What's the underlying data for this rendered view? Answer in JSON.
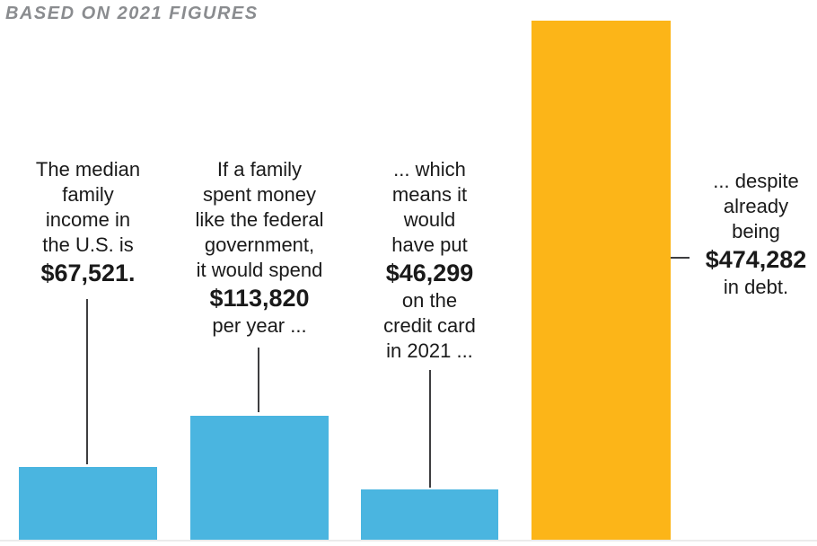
{
  "title": "BASED ON 2021 FIGURES",
  "colors": {
    "bar_blue": "#4ab5e0",
    "bar_orange": "#fcb518",
    "connector": "#3e3e40",
    "baseline": "#ebebeb",
    "text": "#1a1a1a",
    "title_gray": "#8a8c8f"
  },
  "chart_data": {
    "type": "bar",
    "title": "BASED ON 2021 FIGURES",
    "values": [
      67521,
      113820,
      46299,
      474282
    ],
    "unit": "USD",
    "bar_colors": [
      "#4ab5e0",
      "#4ab5e0",
      "#4ab5e0",
      "#fcb518"
    ],
    "ylim": [
      0,
      474282
    ],
    "grid": false,
    "legend": false,
    "annotations": [
      {
        "name": "median-family-income",
        "lines_before": [
          "The median",
          "family",
          "income in",
          "the U.S. is"
        ],
        "amount": "$67,521.",
        "lines_after": []
      },
      {
        "name": "family-spending-like-government",
        "lines_before": [
          "If a family",
          "spent money",
          "like the federal",
          "government,",
          "it would spend"
        ],
        "amount": "$113,820",
        "lines_after": [
          "per year ..."
        ]
      },
      {
        "name": "credit-card-2021",
        "lines_before": [
          "... which",
          "means it",
          "would",
          "have put"
        ],
        "amount": "$46,299",
        "lines_after": [
          "on the",
          "credit card",
          "in 2021 ..."
        ]
      },
      {
        "name": "existing-debt",
        "lines_before": [
          "... despite",
          "already",
          "being"
        ],
        "amount": "$474,282",
        "lines_after": [
          "in debt."
        ]
      }
    ]
  }
}
